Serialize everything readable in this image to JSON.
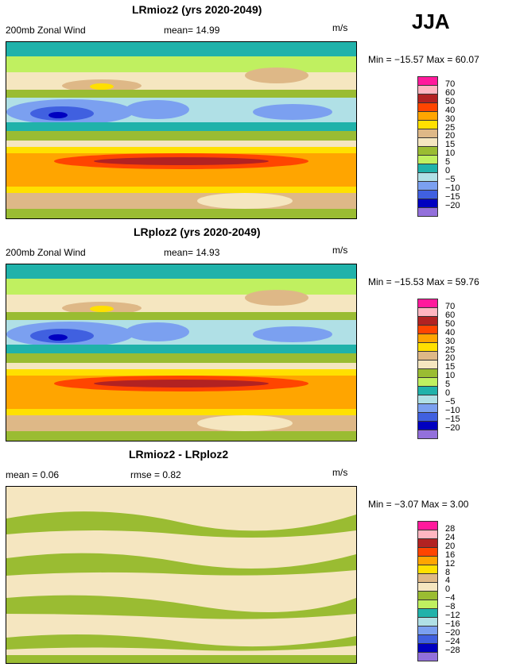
{
  "season": "JJA",
  "panels": [
    {
      "title": "LRmioz2 (yrs 2020-2049)",
      "left": "200mb Zonal Wind",
      "mean": "mean=  14.99",
      "units": "m/s",
      "minmax": "Min = −15.57 Max =  60.07"
    },
    {
      "title": "LRploz2 (yrs 2020-2049)",
      "left": "200mb Zonal Wind",
      "mean": "mean=  14.93",
      "units": "m/s",
      "minmax": "Min = −15.53 Max =  59.76"
    },
    {
      "title": "LRmioz2 - LRploz2",
      "left": "mean =   0.06",
      "mean": "rmse =   0.82",
      "units": "m/s",
      "minmax": "Min =  −3.07 Max =   3.00"
    }
  ],
  "colorbar_colors": [
    "#ff1a9c",
    "#ffb6c1",
    "#b22222",
    "#ff4500",
    "#ffa500",
    "#ffe000",
    "#deb887",
    "#f5e6c0",
    "#9abc32",
    "#c0f060",
    "#20b2aa",
    "#b0e0e6",
    "#7ba0f0",
    "#4060e0",
    "#0000c0",
    "#9370db"
  ],
  "colorbar_labels_main": [
    "70",
    "60",
    "50",
    "40",
    "30",
    "25",
    "20",
    "15",
    "10",
    "5",
    "0",
    "−5",
    "−10",
    "−15",
    "−20"
  ],
  "colorbar_labels_diff": [
    "28",
    "24",
    "20",
    "16",
    "12",
    "8",
    "4",
    "0",
    "−4",
    "−8",
    "−12",
    "−16",
    "−20",
    "−24",
    "−28"
  ]
}
